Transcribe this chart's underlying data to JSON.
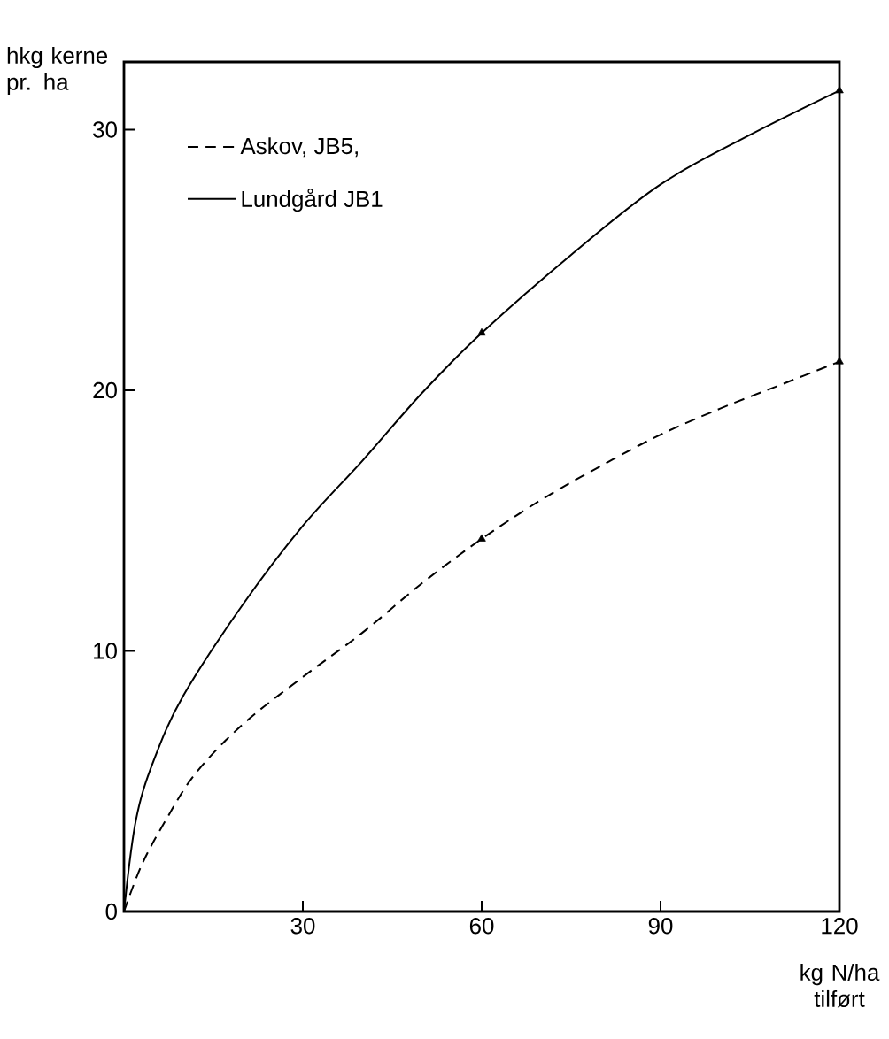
{
  "chart_data": {
    "type": "line",
    "xlabel": "kg N/ha tilført",
    "ylabel": "hkg kerne pr. ha",
    "xlim": [
      0,
      120
    ],
    "ylim": [
      0,
      32.6
    ],
    "xticks": [
      30,
      60,
      90,
      120
    ],
    "yticks": [
      0,
      10,
      20,
      30
    ],
    "legend": "top left",
    "grid": false,
    "series": [
      {
        "name": "Askov, JB5,",
        "color": "#000000",
        "line_style": "dashed",
        "x": [
          0,
          3,
          7,
          12,
          20,
          30,
          40,
          50,
          60,
          70,
          80,
          90,
          100,
          110,
          120
        ],
        "values": [
          0,
          1.8,
          3.5,
          5.3,
          7.2,
          9.0,
          10.7,
          12.6,
          14.3,
          15.8,
          17.1,
          18.3,
          19.3,
          20.2,
          21.1
        ]
      },
      {
        "name": "Lundgård JB1",
        "color": "#000000",
        "line_style": "solid",
        "x": [
          0,
          2,
          5,
          10,
          20,
          30,
          40,
          50,
          60,
          75,
          90,
          105,
          120
        ],
        "values": [
          0,
          3.5,
          5.8,
          8.3,
          11.8,
          14.8,
          17.3,
          19.9,
          22.2,
          25.2,
          27.9,
          29.8,
          31.5
        ]
      },
      {
        "type": "scatter",
        "color": "#000000",
        "marker": "triangle",
        "x": [
          60,
          120
        ],
        "values": [
          14.3,
          21.1
        ]
      },
      {
        "type": "scatter",
        "color": "#000000",
        "marker": "triangle",
        "x": [
          60,
          120
        ],
        "values": [
          22.2,
          31.5
        ]
      }
    ]
  }
}
